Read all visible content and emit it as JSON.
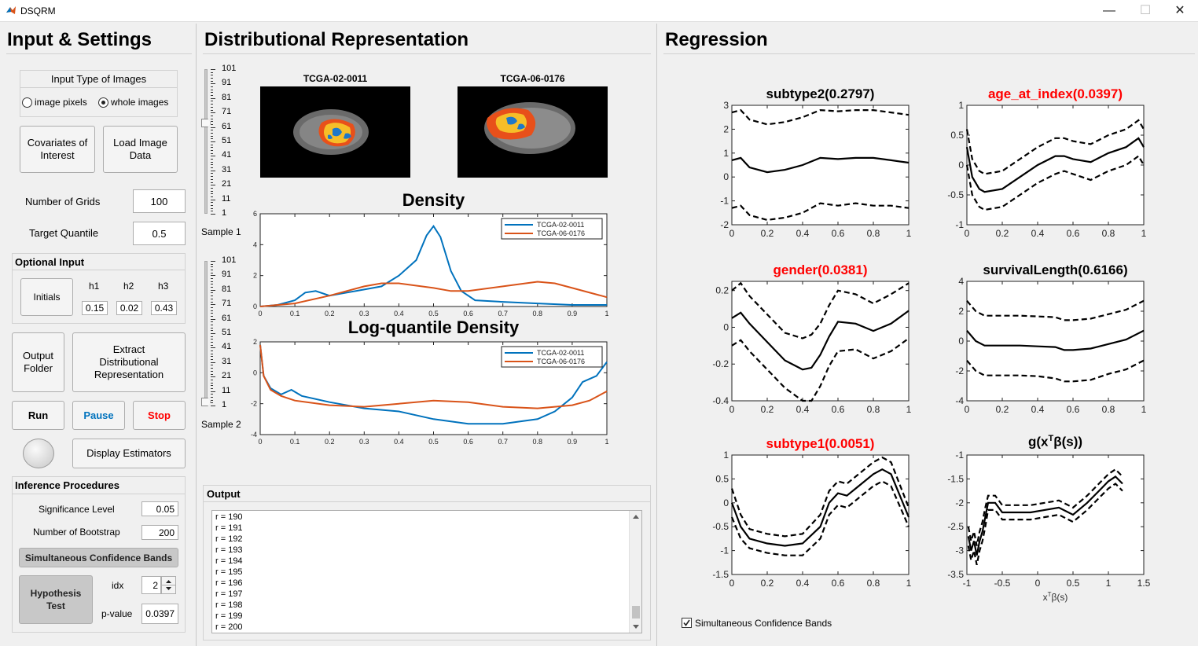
{
  "window": {
    "title": "DSQRM",
    "minimize": "—",
    "maximize": "☐",
    "close": "✕"
  },
  "left": {
    "title": "Input & Settings",
    "input_type": {
      "title": "Input Type of Images",
      "opt1": "image pixels",
      "opt2": "whole images",
      "selected": "whole images"
    },
    "covariates_btn": "Covariates of Interest",
    "load_btn": "Load Image Data",
    "num_grids_label": "Number of Grids",
    "num_grids": "100",
    "target_q_label": "Target Quantile",
    "target_q": "0.5",
    "optional": {
      "title": "Optional Input",
      "initials": "Initials",
      "h1": "h1",
      "h2": "h2",
      "h3": "h3",
      "v1": "0.15",
      "v2": "0.02",
      "v3": "0.43"
    },
    "output_folder": "Output Folder",
    "extract": "Extract Distributional Representation",
    "run": "Run",
    "pause": "Pause",
    "stop": "Stop",
    "display": "Display Estimators",
    "inference": {
      "title": "Inference Procedures",
      "sig_label": "Significance Level",
      "sig": "0.05",
      "boot_label": "Number of Bootstrap",
      "boot": "200",
      "scb": "Simultaneous Confidence Bands",
      "hyp": "Hypothesis Test",
      "idx_label": "idx",
      "idx": "2",
      "p_label": "p-value",
      "p": "0.0397"
    },
    "colors": {
      "pause": "#0072bd",
      "stop": "#ff0000"
    }
  },
  "middle": {
    "title": "Distributional Representation",
    "sample1": "Sample 1",
    "sample2": "Sample 2",
    "slider_ticks": [
      "101",
      "91",
      "81",
      "71",
      "61",
      "51",
      "41",
      "31",
      "21",
      "11",
      "1"
    ],
    "img1": "TCGA-02-0011",
    "img2": "TCGA-06-0176",
    "output_title": "Output",
    "output_lines": [
      "r = 190",
      "r = 191",
      "r = 192",
      "r = 193",
      "r = 194",
      "r = 195",
      "r = 196",
      "r = 197",
      "r = 198",
      "r = 199",
      "r = 200"
    ]
  },
  "right": {
    "title": "Regression",
    "scb_check": "Simultaneous Confidence Bands"
  },
  "chart_data": [
    {
      "type": "line",
      "title": "Density",
      "xlim": [
        0,
        1
      ],
      "ylim": [
        0,
        6
      ],
      "xticks": [
        "0",
        "0.1",
        "0.2",
        "0.3",
        "0.4",
        "0.5",
        "0.6",
        "0.7",
        "0.8",
        "0.9",
        "1"
      ],
      "yticks": [
        "0",
        "2",
        "4",
        "6"
      ],
      "legend": "top-right",
      "series": [
        {
          "name": "TCGA-02-0011",
          "color": "#0072bd",
          "x": [
            0,
            0.05,
            0.1,
            0.13,
            0.16,
            0.2,
            0.25,
            0.3,
            0.35,
            0.4,
            0.45,
            0.48,
            0.5,
            0.52,
            0.55,
            0.58,
            0.62,
            0.7,
            0.8,
            0.9,
            1
          ],
          "y": [
            0,
            0.1,
            0.4,
            0.9,
            1.0,
            0.7,
            0.9,
            1.1,
            1.3,
            2.0,
            3.0,
            4.6,
            5.2,
            4.5,
            2.3,
            1.0,
            0.4,
            0.3,
            0.2,
            0.1,
            0.1
          ]
        },
        {
          "name": "TCGA-06-0176",
          "color": "#d95319",
          "x": [
            0,
            0.1,
            0.2,
            0.3,
            0.35,
            0.4,
            0.5,
            0.55,
            0.6,
            0.7,
            0.8,
            0.85,
            0.9,
            1
          ],
          "y": [
            0,
            0.2,
            0.7,
            1.3,
            1.5,
            1.5,
            1.2,
            1.0,
            1.0,
            1.3,
            1.6,
            1.5,
            1.2,
            0.6
          ]
        }
      ]
    },
    {
      "type": "line",
      "title": "Log-quantile Density",
      "xlim": [
        0,
        1
      ],
      "ylim": [
        -4,
        2
      ],
      "xticks": [
        "0",
        "0.1",
        "0.2",
        "0.3",
        "0.4",
        "0.5",
        "0.6",
        "0.7",
        "0.8",
        "0.9",
        "1"
      ],
      "yticks": [
        "-4",
        "-2",
        "0",
        "2"
      ],
      "legend": "top-right",
      "series": [
        {
          "name": "TCGA-02-0011",
          "color": "#0072bd",
          "x": [
            0,
            0.01,
            0.03,
            0.06,
            0.09,
            0.12,
            0.2,
            0.3,
            0.4,
            0.5,
            0.6,
            0.7,
            0.8,
            0.85,
            0.9,
            0.93,
            0.97,
            1
          ],
          "y": [
            1.8,
            -0.2,
            -1.0,
            -1.4,
            -1.1,
            -1.5,
            -1.9,
            -2.3,
            -2.5,
            -3.0,
            -3.3,
            -3.3,
            -3.0,
            -2.5,
            -1.6,
            -0.6,
            -0.2,
            0.7
          ]
        },
        {
          "name": "TCGA-06-0176",
          "color": "#d95319",
          "x": [
            0,
            0.01,
            0.03,
            0.06,
            0.1,
            0.2,
            0.3,
            0.4,
            0.5,
            0.6,
            0.7,
            0.8,
            0.9,
            0.95,
            1
          ],
          "y": [
            1.8,
            -0.2,
            -1.1,
            -1.5,
            -1.8,
            -2.1,
            -2.2,
            -2.0,
            -1.8,
            -1.9,
            -2.2,
            -2.3,
            -2.1,
            -1.8,
            -1.2
          ]
        }
      ]
    },
    {
      "type": "line",
      "title": "subtype2(0.2797)",
      "xlim": [
        0,
        1
      ],
      "ylim": [
        -2,
        3
      ],
      "xticks": [
        "0",
        "0.2",
        "0.4",
        "0.6",
        "0.8",
        "1"
      ],
      "yticks": [
        "-2",
        "-1",
        "0",
        "1",
        "2",
        "3"
      ],
      "x": [
        0,
        0.05,
        0.1,
        0.2,
        0.3,
        0.4,
        0.5,
        0.6,
        0.7,
        0.8,
        0.9,
        1
      ],
      "est": [
        0.7,
        0.8,
        0.4,
        0.2,
        0.3,
        0.5,
        0.8,
        0.75,
        0.8,
        0.8,
        0.7,
        0.6
      ],
      "lower": [
        -1.3,
        -1.2,
        -1.6,
        -1.8,
        -1.7,
        -1.5,
        -1.1,
        -1.2,
        -1.1,
        -1.2,
        -1.2,
        -1.3
      ],
      "upper": [
        2.7,
        2.8,
        2.4,
        2.2,
        2.3,
        2.5,
        2.8,
        2.75,
        2.8,
        2.8,
        2.7,
        2.6
      ]
    },
    {
      "type": "line",
      "title": "age_at_index(0.0397)",
      "highlight": true,
      "xlim": [
        0,
        1
      ],
      "ylim": [
        -1,
        1
      ],
      "xticks": [
        "0",
        "0.2",
        "0.4",
        "0.6",
        "0.8",
        "1"
      ],
      "yticks": [
        "-1",
        "-0.5",
        "0",
        "0.5",
        "1"
      ],
      "x": [
        0,
        0.03,
        0.07,
        0.1,
        0.2,
        0.3,
        0.4,
        0.5,
        0.55,
        0.6,
        0.7,
        0.8,
        0.9,
        0.97,
        1
      ],
      "est": [
        0.3,
        -0.2,
        -0.4,
        -0.45,
        -0.4,
        -0.2,
        0,
        0.15,
        0.15,
        0.1,
        0.05,
        0.2,
        0.3,
        0.45,
        0.3
      ],
      "lower": [
        0,
        -0.5,
        -0.7,
        -0.75,
        -0.7,
        -0.5,
        -0.3,
        -0.15,
        -0.1,
        -0.15,
        -0.25,
        -0.1,
        0,
        0.15,
        0
      ],
      "upper": [
        0.6,
        0.1,
        -0.1,
        -0.15,
        -0.1,
        0.1,
        0.3,
        0.45,
        0.45,
        0.4,
        0.35,
        0.5,
        0.6,
        0.75,
        0.6
      ]
    },
    {
      "type": "line",
      "title": "gender(0.0381)",
      "highlight": true,
      "xlim": [
        0,
        1
      ],
      "ylim": [
        -0.4,
        0.25
      ],
      "xticks": [
        "0",
        "0.2",
        "0.4",
        "0.6",
        "0.8",
        "1"
      ],
      "yticks": [
        "-0.4",
        "-0.2",
        "0",
        "0.2"
      ],
      "x": [
        0,
        0.05,
        0.1,
        0.2,
        0.3,
        0.4,
        0.45,
        0.5,
        0.55,
        0.6,
        0.7,
        0.8,
        0.9,
        1
      ],
      "est": [
        0.05,
        0.08,
        0.02,
        -0.08,
        -0.18,
        -0.23,
        -0.22,
        -0.15,
        -0.05,
        0.03,
        0.02,
        -0.02,
        0.02,
        0.09
      ],
      "lower": [
        -0.1,
        -0.07,
        -0.13,
        -0.23,
        -0.33,
        -0.4,
        -0.4,
        -0.32,
        -0.21,
        -0.13,
        -0.12,
        -0.17,
        -0.13,
        -0.06
      ],
      "upper": [
        0.2,
        0.24,
        0.17,
        0.07,
        -0.03,
        -0.06,
        -0.04,
        0.02,
        0.12,
        0.2,
        0.18,
        0.13,
        0.18,
        0.24
      ]
    },
    {
      "type": "line",
      "title": "survivalLength(0.6166)",
      "xlim": [
        0,
        1
      ],
      "ylim": [
        -4,
        4
      ],
      "xticks": [
        "0",
        "0.2",
        "0.4",
        "0.6",
        "0.8",
        "1"
      ],
      "yticks": [
        "-4",
        "-2",
        "0",
        "2",
        "4"
      ],
      "x": [
        0,
        0.05,
        0.1,
        0.2,
        0.3,
        0.4,
        0.5,
        0.55,
        0.6,
        0.7,
        0.8,
        0.9,
        1
      ],
      "est": [
        0.7,
        0,
        -0.3,
        -0.3,
        -0.3,
        -0.35,
        -0.4,
        -0.6,
        -0.6,
        -0.5,
        -0.2,
        0.1,
        0.7
      ],
      "lower": [
        -1.3,
        -2,
        -2.3,
        -2.3,
        -2.3,
        -2.35,
        -2.5,
        -2.7,
        -2.7,
        -2.6,
        -2.2,
        -1.9,
        -1.3
      ],
      "upper": [
        2.7,
        2,
        1.7,
        1.7,
        1.7,
        1.65,
        1.6,
        1.4,
        1.4,
        1.5,
        1.8,
        2.1,
        2.7
      ]
    },
    {
      "type": "line",
      "title": "subtype1(0.0051)",
      "highlight": true,
      "xlim": [
        0,
        1
      ],
      "ylim": [
        -1.5,
        1
      ],
      "xticks": [
        "0",
        "0.2",
        "0.4",
        "0.6",
        "0.8",
        "1"
      ],
      "yticks": [
        "-1.5",
        "-1",
        "-0.5",
        "0",
        "0.5",
        "1"
      ],
      "x": [
        0,
        0.05,
        0.1,
        0.2,
        0.3,
        0.4,
        0.5,
        0.55,
        0.6,
        0.65,
        0.7,
        0.8,
        0.85,
        0.9,
        1
      ],
      "est": [
        0,
        -0.5,
        -0.75,
        -0.85,
        -0.9,
        -0.85,
        -0.5,
        0.0,
        0.2,
        0.15,
        0.3,
        0.6,
        0.7,
        0.6,
        -0.3
      ],
      "lower": [
        -0.3,
        -0.75,
        -0.95,
        -1.05,
        -1.1,
        -1.1,
        -0.75,
        -0.25,
        -0.05,
        -0.1,
        0.05,
        0.35,
        0.45,
        0.35,
        -0.5
      ],
      "upper": [
        0.3,
        -0.25,
        -0.55,
        -0.65,
        -0.7,
        -0.65,
        -0.25,
        0.25,
        0.45,
        0.4,
        0.55,
        0.85,
        0.95,
        0.85,
        -0.1
      ]
    },
    {
      "type": "line",
      "title": "g(x",
      "xlabel": "x",
      "xlim": [
        -1,
        1.5
      ],
      "ylim": [
        -3.5,
        -1
      ],
      "xticks": [
        "-1",
        "-0.5",
        "0",
        "0.5",
        "1",
        "1.5"
      ],
      "yticks": [
        "-3.5",
        "-3",
        "-2.5",
        "-2",
        "-1.5",
        "-1"
      ],
      "x": [
        -0.98,
        -0.94,
        -0.9,
        -0.86,
        -0.82,
        -0.78,
        -0.74,
        -0.7,
        -0.6,
        -0.5,
        -0.3,
        -0.1,
        0.1,
        0.3,
        0.5,
        0.7,
        0.9,
        1.0,
        1.1,
        1.2
      ],
      "est": [
        -2.7,
        -3.0,
        -2.8,
        -3.1,
        -2.8,
        -2.6,
        -2.3,
        -2.0,
        -2.0,
        -2.2,
        -2.2,
        -2.2,
        -2.15,
        -2.1,
        -2.25,
        -2.0,
        -1.7,
        -1.55,
        -1.45,
        -1.6
      ],
      "lower": [
        -2.9,
        -3.2,
        -3.0,
        -3.3,
        -3.0,
        -2.8,
        -2.5,
        -2.15,
        -2.15,
        -2.35,
        -2.35,
        -2.35,
        -2.3,
        -2.25,
        -2.4,
        -2.15,
        -1.85,
        -1.7,
        -1.6,
        -1.75
      ],
      "upper": [
        -2.5,
        -2.8,
        -2.6,
        -2.9,
        -2.6,
        -2.4,
        -2.1,
        -1.85,
        -1.85,
        -2.05,
        -2.05,
        -2.05,
        -2.0,
        -1.95,
        -2.1,
        -1.85,
        -1.55,
        -1.4,
        -1.3,
        -1.45
      ]
    }
  ]
}
